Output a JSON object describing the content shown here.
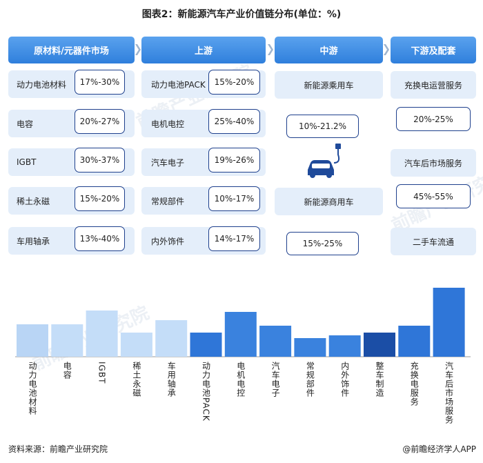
{
  "title": "图表2：新能源汽车产业价值链分布(单位：%)",
  "watermark": "前瞻产业研究院",
  "columns": [
    {
      "header": "原材料/元器件市场",
      "items": [
        {
          "label": "动力电池材料",
          "value": "17%-30%"
        },
        {
          "label": "电容",
          "value": "20%-27%"
        },
        {
          "label": "IGBT",
          "value": "30%-37%"
        },
        {
          "label": "稀土永磁",
          "value": "15%-20%"
        },
        {
          "label": "车用轴承",
          "value": "13%-40%"
        }
      ]
    },
    {
      "header": "上游",
      "items": [
        {
          "label": "动力电池PACK",
          "value": "15%-20%"
        },
        {
          "label": "电机电控",
          "value": "25%-40%"
        },
        {
          "label": "汽车电子",
          "value": "19%-26%"
        },
        {
          "label": "常规部件",
          "value": "10%-17%"
        },
        {
          "label": "内外饰件",
          "value": "14%-17%"
        }
      ]
    },
    {
      "header": "中游",
      "items": [
        {
          "label": "新能源乘用车"
        },
        {
          "value": "10%-21.2%"
        },
        {
          "label": "新能源商用车"
        },
        {
          "value": "15%-25%"
        }
      ]
    },
    {
      "header": "下游及配套",
      "items": [
        {
          "label": "充换电运营服务"
        },
        {
          "value": "20%-25%"
        },
        {
          "label": "汽车后市场服务"
        },
        {
          "value": "45%-55%"
        },
        {
          "label": "二手车流通"
        }
      ]
    }
  ],
  "chart_data": {
    "type": "bar",
    "categories": [
      "动力电池材料",
      "电容",
      "IGBT",
      "稀土永磁",
      "车用轴承",
      "动力电池PACK",
      "电机电控",
      "汽车电子",
      "常规部件",
      "内外饰件",
      "整车制造",
      "充换电服务",
      "汽车后市场服务"
    ],
    "values": [
      23.5,
      23.5,
      33.5,
      17.5,
      26.5,
      17.5,
      32.5,
      22.5,
      13.5,
      15.5,
      17.5,
      22.5,
      50
    ],
    "colors": [
      "#b9d5f5",
      "#c4ddf8",
      "#c4ddf8",
      "#c4ddf8",
      "#c4ddf8",
      "#2f76d8",
      "#3a82de",
      "#3a82de",
      "#3a82de",
      "#3a82de",
      "#1b4ea6",
      "#2f76d8",
      "#2f76d8"
    ],
    "ylim": [
      0,
      50
    ]
  },
  "source": "资料来源：前瞻产业研究院",
  "logo": "@前瞻经济学人APP"
}
